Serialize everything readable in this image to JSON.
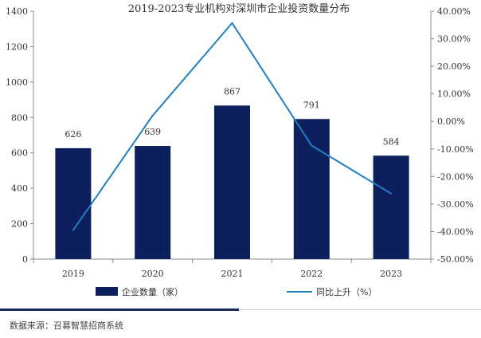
{
  "chart_data": {
    "type": "bar+line",
    "title": "2019-2023专业机构对深圳市企业投资数量分布",
    "categories": [
      "2019",
      "2020",
      "2021",
      "2022",
      "2023"
    ],
    "series": [
      {
        "name": "企业数量（家）",
        "type": "bar",
        "axis": "left",
        "values": [
          626,
          639,
          867,
          791,
          584
        ],
        "color": "#0d1f5c"
      },
      {
        "name": "同比上升（%）",
        "type": "line",
        "axis": "right",
        "values": [
          -39.5,
          2.1,
          35.7,
          -8.8,
          -26.2
        ],
        "color": "#1f7fc0"
      }
    ],
    "left_axis": {
      "ylim": [
        0,
        1400
      ],
      "ticks": [
        "0",
        "200",
        "400",
        "600",
        "800",
        "1000",
        "1200",
        "1400"
      ]
    },
    "right_axis": {
      "ylim": [
        -50,
        40
      ],
      "ticks": [
        "-50.00%",
        "-40.00%",
        "-30.00%",
        "-20.00%",
        "-10.00%",
        "0.00%",
        "10.00%",
        "20.00%",
        "30.00%",
        "40.00%"
      ]
    },
    "data_labels": [
      "626",
      "639",
      "867",
      "791",
      "584"
    ],
    "legend": [
      {
        "label": "企业数量（家）",
        "marker": "bar"
      },
      {
        "label": "同比上升（%）",
        "marker": "line"
      }
    ],
    "legend_position": "bottom"
  },
  "source": "数据来源：召募智慧招商系统"
}
